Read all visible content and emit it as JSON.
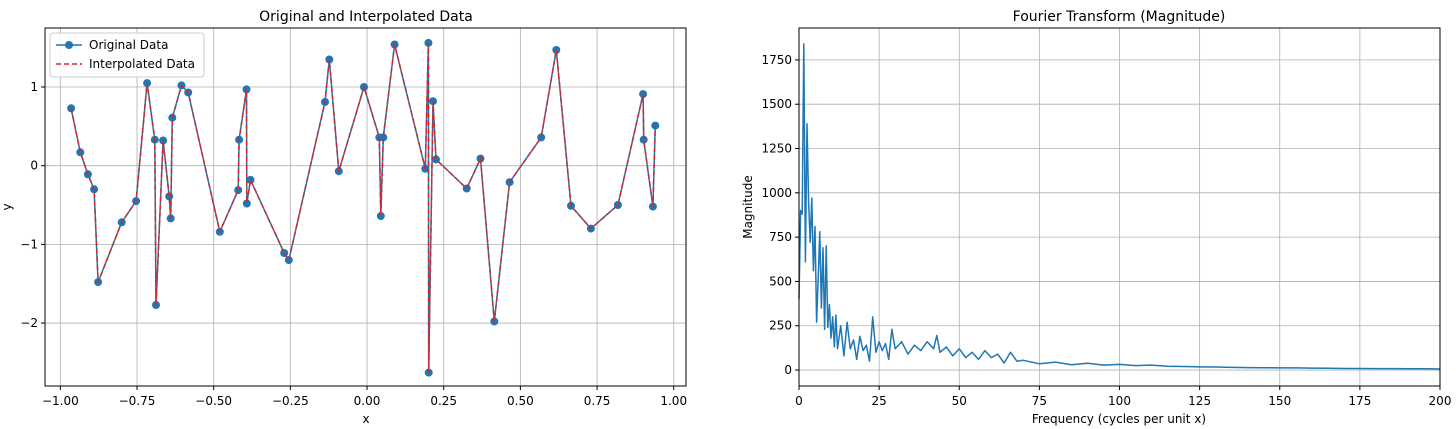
{
  "chart_data": [
    {
      "type": "line",
      "title": "Original and Interpolated Data",
      "xlabel": "x",
      "ylabel": "y",
      "xlim": [
        -1.05,
        1.04
      ],
      "ylim": [
        -2.8,
        1.75
      ],
      "xticks": [
        -1.0,
        -0.75,
        -0.5,
        -0.25,
        0.0,
        0.25,
        0.5,
        0.75,
        1.0
      ],
      "xtick_labels": [
        "−1.00",
        "−0.75",
        "−0.50",
        "−0.25",
        "0.00",
        "0.25",
        "0.50",
        "0.75",
        "1.00"
      ],
      "yticks": [
        -2,
        -1,
        0,
        1
      ],
      "ytick_labels": [
        "−2",
        "−1",
        "0",
        "1"
      ],
      "grid": true,
      "legend": "top-left",
      "colors": {
        "original": "#1f77b4",
        "interpolated": "#d62728"
      },
      "series": [
        {
          "name": "Original Data",
          "style": "solid-with-markers",
          "x": [
            -0.965,
            -0.935,
            -0.91,
            -0.89,
            -0.877,
            -0.8,
            -0.753,
            -0.717,
            -0.692,
            -0.688,
            -0.665,
            -0.645,
            -0.64,
            -0.635,
            -0.605,
            -0.583,
            -0.48,
            -0.42,
            -0.417,
            -0.393,
            -0.392,
            -0.38,
            -0.27,
            -0.255,
            -0.137,
            -0.123,
            -0.092,
            -0.01,
            0.04,
            0.045,
            0.053,
            0.09,
            0.19,
            0.2,
            0.201,
            0.215,
            0.225,
            0.325,
            0.37,
            0.415,
            0.465,
            0.568,
            0.617,
            0.665,
            0.73,
            0.818,
            0.9,
            0.902,
            0.932,
            0.94
          ],
          "y": [
            0.73,
            0.17,
            -0.11,
            -0.3,
            -1.48,
            -0.72,
            -0.45,
            1.05,
            0.33,
            -1.77,
            0.32,
            -0.39,
            -0.67,
            0.61,
            1.02,
            0.93,
            -0.84,
            -0.31,
            0.33,
            0.97,
            -0.48,
            -0.18,
            -1.11,
            -1.2,
            0.81,
            1.35,
            -0.07,
            1.0,
            0.36,
            -0.64,
            0.36,
            1.54,
            -0.04,
            1.56,
            -2.63,
            0.82,
            0.08,
            -0.29,
            0.09,
            -1.98,
            -0.21,
            0.36,
            1.47,
            -0.51,
            -0.8,
            -0.5,
            0.91,
            0.33,
            -0.52,
            0.51
          ]
        },
        {
          "name": "Interpolated Data",
          "style": "dashed"
        }
      ]
    },
    {
      "type": "line",
      "title": "Fourier Transform (Magnitude)",
      "xlabel": "Frequency (cycles per unit x)",
      "ylabel": "Magnitude",
      "xlim": [
        0,
        200
      ],
      "ylim": [
        -90,
        1930
      ],
      "xticks": [
        0,
        25,
        50,
        75,
        100,
        125,
        150,
        175,
        200
      ],
      "yticks": [
        0,
        250,
        500,
        750,
        1000,
        1250,
        1500,
        1750
      ],
      "grid": true,
      "colors": {
        "line": "#1f77b4"
      },
      "series": [
        {
          "x": [
            0,
            0.5,
            1,
            1.5,
            2,
            2.5,
            3,
            3.5,
            4,
            4.5,
            5,
            5.5,
            6,
            6.5,
            7,
            7.5,
            8,
            8.5,
            9,
            9.5,
            10,
            10.5,
            11,
            11.5,
            12,
            13,
            14,
            15,
            16,
            17,
            18,
            19,
            20,
            21,
            22,
            23,
            24,
            25,
            26,
            27,
            28,
            29,
            30,
            32,
            34,
            36,
            38,
            40,
            42,
            43,
            44,
            46,
            48,
            50,
            52,
            54,
            56,
            58,
            60,
            62,
            64,
            66,
            68,
            70,
            75,
            80,
            85,
            90,
            95,
            100,
            105,
            110,
            115,
            120,
            125,
            130,
            135,
            140,
            145,
            150,
            155,
            160,
            165,
            170,
            175,
            180,
            185,
            190,
            195,
            200
          ],
          "y": [
            400,
            900,
            880,
            1840,
            610,
            1390,
            950,
            720,
            970,
            560,
            810,
            270,
            520,
            780,
            350,
            690,
            230,
            700,
            240,
            370,
            180,
            300,
            130,
            310,
            120,
            250,
            80,
            270,
            120,
            170,
            60,
            190,
            110,
            140,
            50,
            300,
            100,
            160,
            110,
            150,
            60,
            230,
            120,
            160,
            90,
            140,
            110,
            160,
            120,
            195,
            100,
            130,
            80,
            120,
            70,
            100,
            60,
            110,
            70,
            90,
            40,
            100,
            50,
            55,
            35,
            45,
            30,
            38,
            28,
            32,
            25,
            28,
            22,
            20,
            18,
            17,
            15,
            14,
            13,
            12,
            12,
            11,
            10,
            9,
            9,
            8,
            8,
            7,
            7,
            6
          ]
        }
      ]
    }
  ]
}
